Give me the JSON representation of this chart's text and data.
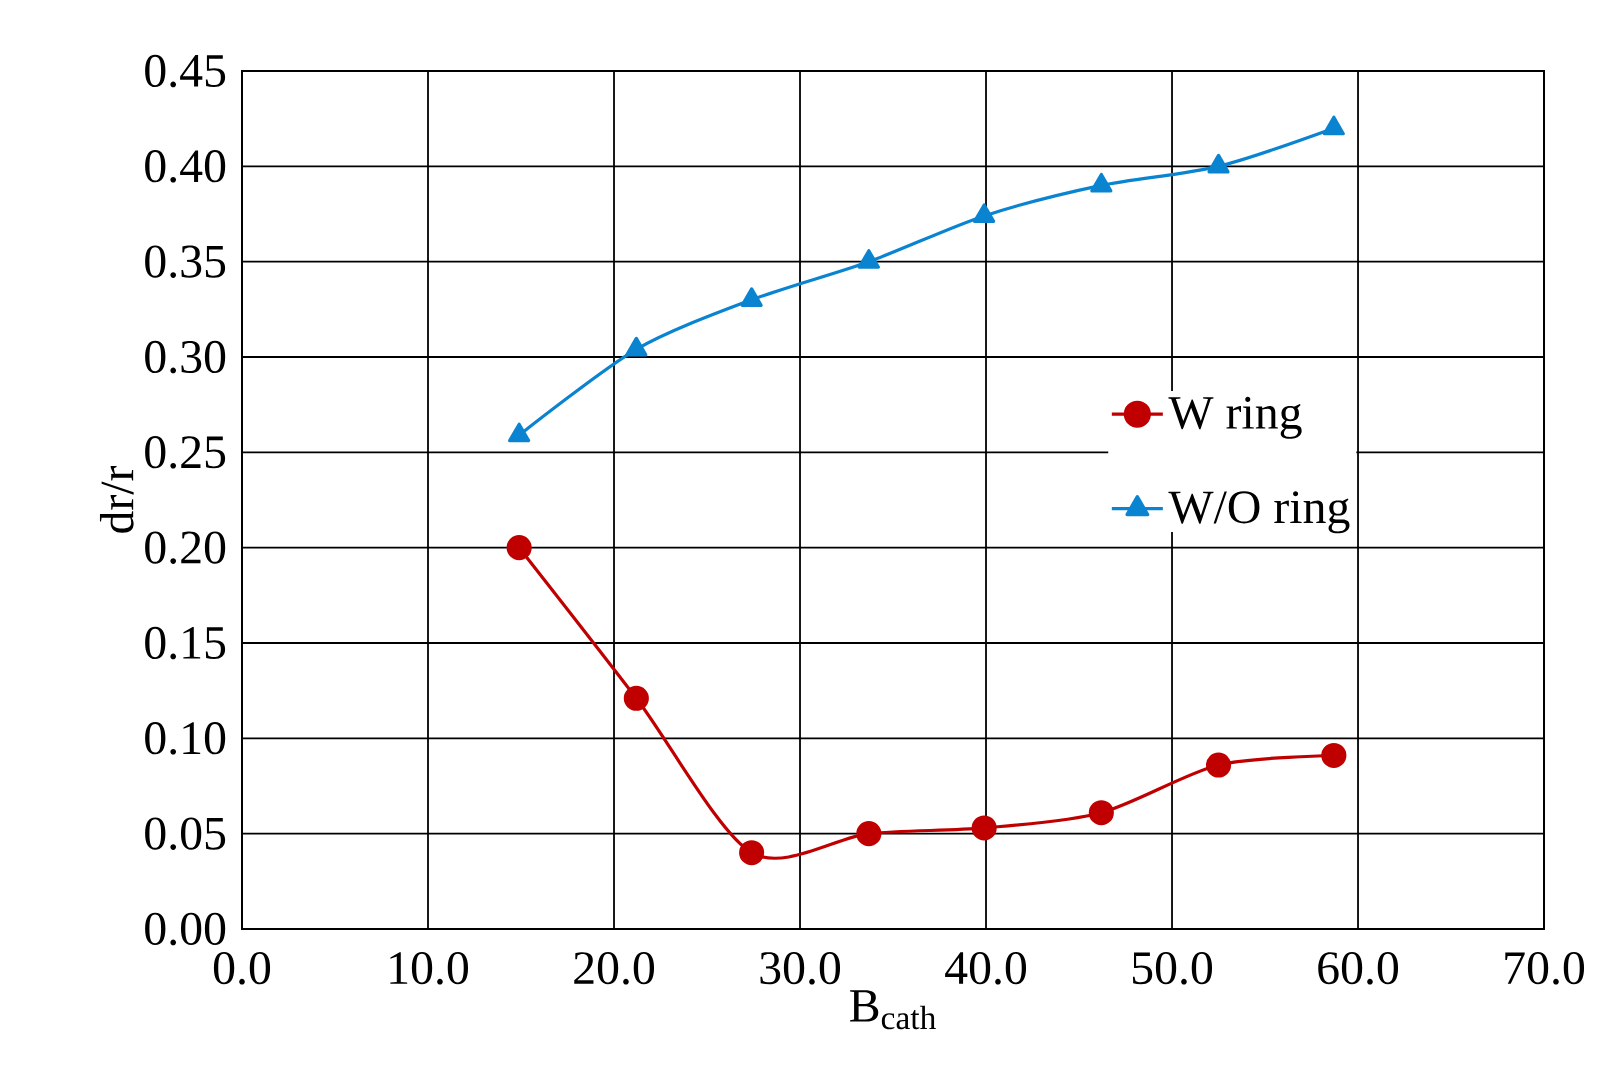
{
  "chart_data": {
    "type": "line",
    "xlabel": "B$_{cath}$",
    "ylabel": "dr/r",
    "x": [
      14.9,
      21.2,
      27.4,
      33.7,
      39.9,
      46.2,
      52.5,
      58.7
    ],
    "series": [
      {
        "name": "W ring",
        "color": "#c00000",
        "marker": "circle",
        "values": [
          0.2,
          0.121,
          0.04,
          0.05,
          0.053,
          0.061,
          0.086,
          0.091
        ]
      },
      {
        "name": "W/O ring",
        "color": "#0a84d0",
        "marker": "triangle",
        "values": [
          0.259,
          0.304,
          0.33,
          0.35,
          0.374,
          0.39,
          0.4,
          0.42
        ]
      }
    ],
    "xlim": [
      0,
      70
    ],
    "ylim": [
      0,
      0.45
    ],
    "xticks": [
      {
        "value": 0,
        "label": "0.0"
      },
      {
        "value": 10,
        "label": "10.0"
      },
      {
        "value": 20,
        "label": "20.0"
      },
      {
        "value": 30,
        "label": "30.0"
      },
      {
        "value": 40,
        "label": "40.0"
      },
      {
        "value": 50,
        "label": "50.0"
      },
      {
        "value": 60,
        "label": "60.0"
      },
      {
        "value": 70,
        "label": "70.0"
      }
    ],
    "yticks": [
      {
        "value": 0,
        "label": "0.00"
      },
      {
        "value": 0.05,
        "label": "0.05"
      },
      {
        "value": 0.1,
        "label": "0.10"
      },
      {
        "value": 0.15,
        "label": "0.15"
      },
      {
        "value": 0.2,
        "label": "0.20"
      },
      {
        "value": 0.25,
        "label": "0.25"
      },
      {
        "value": 0.3,
        "label": "0.30"
      },
      {
        "value": 0.35,
        "label": "0.35"
      },
      {
        "value": 0.4,
        "label": "0.40"
      },
      {
        "value": 0.45,
        "label": "0.45"
      }
    ],
    "grid": true,
    "legend": "right"
  }
}
